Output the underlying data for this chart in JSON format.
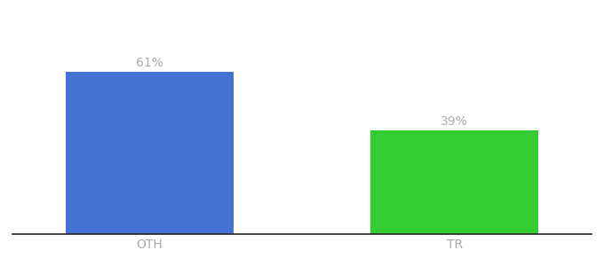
{
  "categories": [
    "OTH",
    "TR"
  ],
  "values": [
    61,
    39
  ],
  "bar_colors": [
    "#4472d4",
    "#33cc33"
  ],
  "label_texts": [
    "61%",
    "39%"
  ],
  "label_color": "#aaaaaa",
  "label_fontsize": 10,
  "tick_fontsize": 10,
  "tick_color": "#aaaaaa",
  "background_color": "#ffffff",
  "ylim": [
    0,
    80
  ],
  "bar_width": 0.55,
  "figsize": [
    6.8,
    3.0
  ],
  "dpi": 100,
  "xlim": [
    -0.45,
    1.45
  ]
}
